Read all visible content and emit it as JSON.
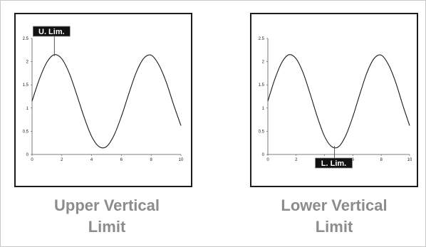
{
  "chart_data": [
    {
      "type": "line",
      "series": [
        {
          "x": [
            0,
            0.5,
            1,
            1.5,
            2,
            2.5,
            3,
            3.5,
            4,
            4.5,
            5,
            5.5,
            6,
            6.5,
            7,
            7.5,
            8,
            8.5,
            9,
            9.5,
            10
          ],
          "y": [
            1.15,
            1.63,
            1.99,
            2.15,
            2.06,
            1.75,
            1.29,
            0.8,
            0.39,
            0.17,
            0.17,
            0.41,
            0.82,
            1.31,
            1.77,
            2.07,
            2.14,
            1.94,
            1.57,
            1.08,
            0.62
          ]
        }
      ],
      "xlim": [
        0,
        10
      ],
      "ylim": [
        0,
        2.5
      ],
      "x_ticks": [
        "0",
        "2",
        "4",
        "6",
        "8",
        "10"
      ],
      "y_ticks": [
        "0",
        "0.5",
        "1",
        "1.5",
        "2",
        "2.5"
      ],
      "marker": {
        "label": "U. Lim.",
        "x": 1.5,
        "y": 2.15
      }
    },
    {
      "type": "line",
      "series": [
        {
          "x": [
            0,
            0.5,
            1,
            1.5,
            2,
            2.5,
            3,
            3.5,
            4,
            4.5,
            5,
            5.5,
            6,
            6.5,
            7,
            7.5,
            8,
            8.5,
            9,
            9.5,
            10
          ],
          "y": [
            1.15,
            1.63,
            1.99,
            2.15,
            2.06,
            1.75,
            1.29,
            0.8,
            0.39,
            0.17,
            0.17,
            0.41,
            0.82,
            1.31,
            1.77,
            2.07,
            2.14,
            1.94,
            1.57,
            1.08,
            0.62
          ]
        }
      ],
      "xlim": [
        0,
        10
      ],
      "ylim": [
        0,
        2.5
      ],
      "x_ticks": [
        "0",
        "2",
        "4",
        "6",
        "8",
        "10"
      ],
      "y_ticks": [
        "0",
        "0.5",
        "1",
        "1.5",
        "2",
        "2.5"
      ],
      "marker": {
        "label": "L. Lim.",
        "x": 4.7,
        "y": 0.15
      }
    }
  ],
  "captions": {
    "left": {
      "line1": "Upper Vertical",
      "line2": "Limit"
    },
    "right": {
      "line1": "Lower Vertical",
      "line2": "Limit"
    }
  },
  "colors": {
    "curve": "#1a1a1a",
    "axis": "#555555",
    "label_bg": "#111111",
    "label_text": "#ffffff",
    "caption": "#8c8c8c"
  }
}
